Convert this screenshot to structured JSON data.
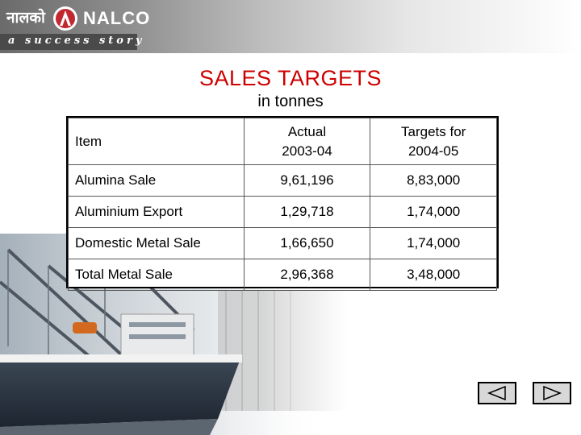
{
  "header": {
    "brand_hindi": "नालको",
    "brand_name": "NALCO",
    "tagline": "a success story",
    "logo_icon": "nalco-logo-icon"
  },
  "title": "SALES TARGETS",
  "subtitle": "in tonnes",
  "table": {
    "columns": [
      {
        "line1": "Item",
        "line2": ""
      },
      {
        "line1": "Actual",
        "line2": "2003-04"
      },
      {
        "line1": "Targets for",
        "line2": "2004-05"
      }
    ],
    "rows": [
      {
        "item": "Alumina Sale",
        "actual": "9,61,196",
        "target": "8,83,000"
      },
      {
        "item": "Aluminium Export",
        "actual": "1,29,718",
        "target": "1,74,000"
      },
      {
        "item": "Domestic Metal Sale",
        "actual": "1,66,650",
        "target": "1,74,000"
      },
      {
        "item": "Total Metal Sale",
        "actual": "2,96,368",
        "target": "3,48,000"
      }
    ]
  },
  "navigation": {
    "prev_icon": "triangle-left-icon",
    "next_icon": "triangle-right-icon"
  },
  "colors": {
    "title": "#cc0000",
    "banner_dark": "#6b6b6b",
    "nav_button": "#d8d8d8"
  }
}
